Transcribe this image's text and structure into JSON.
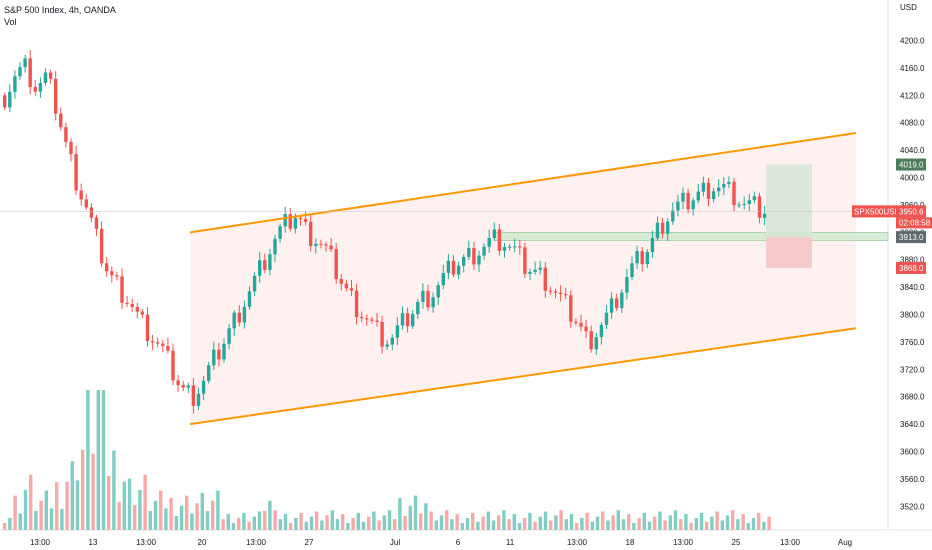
{
  "header": {
    "title": "S&P 500 Index, 4h, OANDA",
    "volume_label": "Vol"
  },
  "colors": {
    "up": "#26a69a",
    "down": "#ef5350",
    "up_volume": "#7fcdc3",
    "down_volume": "#f7a9a8",
    "channel": "#ff9800",
    "channel_fill": "#fdecea",
    "support_zone": "#c8e6c9",
    "target_zone": "#d7e6d7",
    "stop_zone": "#f6c6c6",
    "price_tag": "#ef5350",
    "target_tag": "#4a7c59"
  },
  "price_axis": {
    "currency": "USD",
    "ticks": [
      "4200.0",
      "4160.0",
      "4120.0",
      "4080.0",
      "4040.0",
      "4000.0",
      "3960.0",
      "3920.0",
      "3880.0",
      "3840.0",
      "3800.0",
      "3760.0",
      "3720.0",
      "3680.0",
      "3640.0",
      "3600.0",
      "3560.0",
      "3520.0"
    ]
  },
  "time_axis": {
    "ticks": [
      "13:00",
      "13",
      "13:00",
      "20",
      "13:00",
      "27",
      "Jul",
      "6",
      "11",
      "13:00",
      "18",
      "13:00",
      "25",
      "13:00",
      "Aug"
    ]
  },
  "tags": {
    "symbol": "SPX500USD",
    "last_price": "3950.6",
    "countdown": "02:08:58",
    "target": "4019.0",
    "level": "3913.0",
    "stop": "3868.0"
  },
  "chart_data": {
    "type": "candlestick",
    "title": "S&P 500 Index, 4h, OANDA",
    "ylabel": "USD",
    "ylim": [
      3500,
      4230
    ],
    "grid": false,
    "x": [
      "13:00",
      "13",
      "13:00",
      "20",
      "13:00",
      "27",
      "Jul",
      "6",
      "11",
      "13:00",
      "18",
      "13:00",
      "25",
      "13:00",
      "Aug"
    ],
    "close_path": [
      4120,
      4150,
      4160,
      4130,
      4145,
      4100,
      4040,
      3990,
      3950,
      3900,
      3860,
      3840,
      3820,
      3790,
      3770,
      3750,
      3720,
      3690,
      3680,
      3700,
      3730,
      3760,
      3790,
      3820,
      3850,
      3880,
      3910,
      3930,
      3945,
      3920,
      3910,
      3890,
      3860,
      3830,
      3810,
      3790,
      3770,
      3760,
      3780,
      3800,
      3820,
      3830,
      3850,
      3870,
      3880,
      3890,
      3900,
      3910,
      3905,
      3890,
      3870,
      3860,
      3850,
      3830,
      3810,
      3790,
      3760,
      3780,
      3800,
      3830,
      3860,
      3880,
      3900,
      3930,
      3950,
      3960,
      3970,
      3980,
      3990,
      3985,
      3975,
      3960,
      3955,
      3950
    ],
    "volume_profile": [
      1,
      2,
      3,
      2,
      2,
      3,
      4,
      6,
      8,
      10,
      5,
      4,
      3,
      3,
      2,
      2,
      2,
      2,
      2,
      2,
      2,
      1,
      1,
      1,
      1,
      2,
      1,
      1,
      1,
      1,
      1,
      1,
      1,
      1,
      1,
      1,
      1,
      1,
      2,
      2,
      2,
      1,
      1,
      1,
      1,
      1,
      1,
      1,
      1,
      1,
      1,
      1,
      1,
      1,
      1,
      1,
      1,
      1,
      1,
      1,
      1,
      1,
      1,
      1,
      1,
      1,
      1,
      1,
      1,
      1,
      1,
      1,
      1,
      1
    ],
    "last_price": 3950.6,
    "ascending_channel": {
      "upper": [
        [
          3920,
          4065
        ]
      ],
      "lower": [
        [
          3640,
          3780
        ]
      ]
    },
    "support_level": 3913.0,
    "target_level": 4019.0,
    "stop_level": 3868.0
  }
}
